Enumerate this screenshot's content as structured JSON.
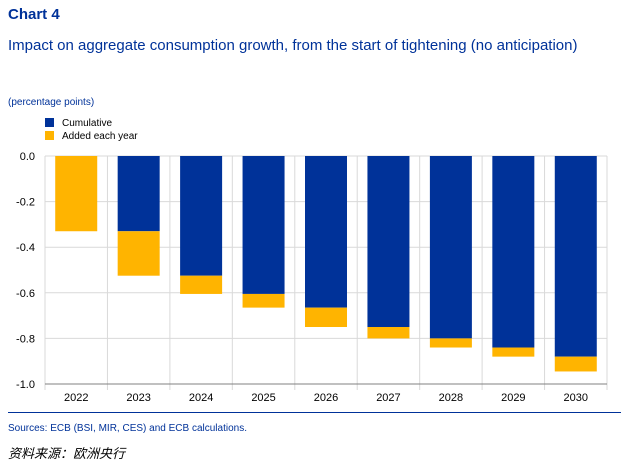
{
  "header": {
    "chart_label": "Chart 4",
    "subtitle": "Impact on aggregate consumption growth, from the start of tightening (no anticipation)",
    "unit": "(percentage points)"
  },
  "footer": {
    "sources": "Sources: ECB (BSI, MIR, CES) and ECB calculations.",
    "cn_source": "资料来源：欧洲央行"
  },
  "colors": {
    "cumulative": "#003299",
    "added": "#FFB400",
    "text": "#003299",
    "grid": "#d9d9d9"
  },
  "chart_data": {
    "type": "bar",
    "title": "Impact on aggregate consumption growth, from the start of tightening (no anticipation)",
    "ylabel": "(percentage points)",
    "xlabel": "",
    "categories": [
      "2022",
      "2023",
      "2024",
      "2025",
      "2026",
      "2027",
      "2028",
      "2029",
      "2030"
    ],
    "series": [
      {
        "name": "Cumulative",
        "values": [
          0.0,
          -0.33,
          -0.525,
          -0.605,
          -0.665,
          -0.75,
          -0.8,
          -0.84,
          -0.88
        ]
      },
      {
        "name": "Added each year",
        "values": [
          -0.33,
          -0.195,
          -0.08,
          -0.06,
          -0.085,
          -0.05,
          -0.04,
          -0.04,
          -0.065
        ]
      }
    ],
    "stacked": true,
    "ylim": [
      -1.0,
      0.0
    ],
    "yticks": [
      "0.0",
      "-0.2",
      "-0.4",
      "-0.6",
      "-0.8",
      "-1.0"
    ],
    "ytick_values": [
      0.0,
      -0.2,
      -0.4,
      -0.6,
      -0.8,
      -1.0
    ],
    "legend_position": "top-left",
    "grid": true
  }
}
